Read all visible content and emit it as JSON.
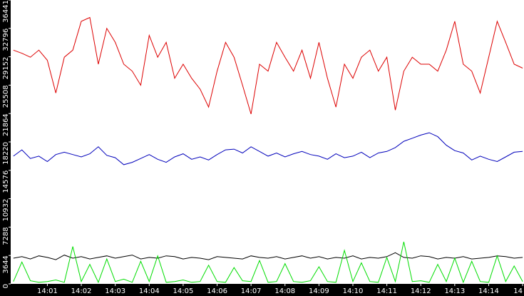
{
  "chart_data": {
    "type": "line",
    "x": [
      0,
      0.25,
      0.5,
      0.75,
      1,
      1.25,
      1.5,
      1.75,
      2,
      2.25,
      2.5,
      2.75,
      3,
      3.25,
      3.5,
      3.75,
      4,
      4.25,
      4.5,
      4.75,
      5,
      5.25,
      5.5,
      5.75,
      6,
      6.25,
      6.5,
      6.75,
      7,
      7.25,
      7.5,
      7.75,
      8,
      8.25,
      8.5,
      8.75,
      9,
      9.25,
      9.5,
      9.75,
      10,
      10.25,
      10.5,
      10.75,
      11,
      11.25,
      11.5,
      11.75,
      12,
      12.25,
      12.5,
      12.75,
      13,
      13.25,
      13.5,
      13.75,
      14,
      14.25,
      14.5,
      14.75,
      15
    ],
    "series": [
      {
        "color": "#dd0000",
        "values": [
          30000,
          29600,
          29100,
          30000,
          28700,
          24500,
          29100,
          30000,
          33700,
          34200,
          28200,
          32800,
          31000,
          28200,
          27300,
          25500,
          31900,
          29100,
          31000,
          26400,
          28200,
          26400,
          25000,
          22700,
          27300,
          31000,
          29100,
          25500,
          21800,
          28200,
          27300,
          31000,
          29100,
          27300,
          30000,
          26400,
          31000,
          26400,
          22700,
          28200,
          26400,
          29100,
          30000,
          27300,
          29100,
          22300,
          27300,
          29100,
          28200,
          28200,
          27300,
          30000,
          33700,
          28200,
          27300,
          24500,
          29100,
          33700,
          31000,
          28200,
          27700
        ]
      },
      {
        "color": "#0000bb",
        "values": [
          16400,
          17200,
          16100,
          16400,
          15700,
          16600,
          16900,
          16600,
          16300,
          16700,
          17600,
          16500,
          16200,
          15300,
          15600,
          16100,
          16600,
          16000,
          15600,
          16300,
          16700,
          16000,
          16300,
          15900,
          16600,
          17200,
          17300,
          16800,
          17600,
          17000,
          16400,
          16800,
          16300,
          16700,
          17000,
          16600,
          16400,
          16000,
          16700,
          16200,
          16400,
          16900,
          16200,
          16800,
          17000,
          17500,
          18300,
          18700,
          19100,
          19400,
          18900,
          17800,
          17100,
          16800,
          15900,
          16400,
          16000,
          15700,
          16300,
          16900,
          17000
        ]
      },
      {
        "color": "#000000",
        "values": [
          3300,
          3500,
          3200,
          3600,
          3400,
          3100,
          3700,
          3300,
          3500,
          3200,
          3400,
          3600,
          3300,
          3500,
          3700,
          3200,
          3400,
          3300,
          3600,
          3500,
          3200,
          3400,
          3300,
          3100,
          3500,
          3400,
          3300,
          3200,
          3600,
          3400,
          3300,
          3500,
          3200,
          3400,
          3600,
          3300,
          3500,
          3200,
          3400,
          3300,
          3600,
          3200,
          3400,
          3300,
          3500,
          4000,
          3400,
          3300,
          3600,
          3500,
          3200,
          3400,
          3300,
          3500,
          3200,
          3300,
          3400,
          3600,
          3500,
          3300,
          3400
        ]
      },
      {
        "color": "#00dd00",
        "values": [
          300,
          2800,
          400,
          200,
          300,
          500,
          200,
          4800,
          300,
          2500,
          200,
          3200,
          300,
          600,
          200,
          2900,
          300,
          3600,
          200,
          300,
          500,
          200,
          300,
          2400,
          300,
          200,
          2100,
          400,
          300,
          3000,
          200,
          300,
          2600,
          300,
          200,
          400,
          2200,
          300,
          200,
          4300,
          300,
          2700,
          300,
          200,
          3400,
          300,
          5400,
          300,
          400,
          200,
          2500,
          300,
          3300,
          200,
          2900,
          300,
          200,
          3600,
          300,
          2300,
          300
        ]
      }
    ],
    "xlim": [
      -0.08,
      15.04
    ],
    "xticks": [
      {
        "value": 1,
        "label": "14:01"
      },
      {
        "value": 2,
        "label": "14:02"
      },
      {
        "value": 3,
        "label": "14:03"
      },
      {
        "value": 4,
        "label": "14:04"
      },
      {
        "value": 5,
        "label": "14:05"
      },
      {
        "value": 6,
        "label": "14:06"
      },
      {
        "value": 7,
        "label": "14:07"
      },
      {
        "value": 8,
        "label": "14:08"
      },
      {
        "value": 9,
        "label": "14:09"
      },
      {
        "value": 10,
        "label": "14:10"
      },
      {
        "value": 11,
        "label": "14:11"
      },
      {
        "value": 12,
        "label": "14:12"
      },
      {
        "value": 13,
        "label": "14:13"
      },
      {
        "value": 14,
        "label": "14:14"
      },
      {
        "value": 15,
        "label": "14"
      }
    ],
    "ylim": [
      0,
      36441
    ],
    "yticks": [
      0,
      3644,
      7288,
      10932,
      14576,
      18220,
      21864,
      25508,
      29152,
      32796,
      36441
    ]
  }
}
